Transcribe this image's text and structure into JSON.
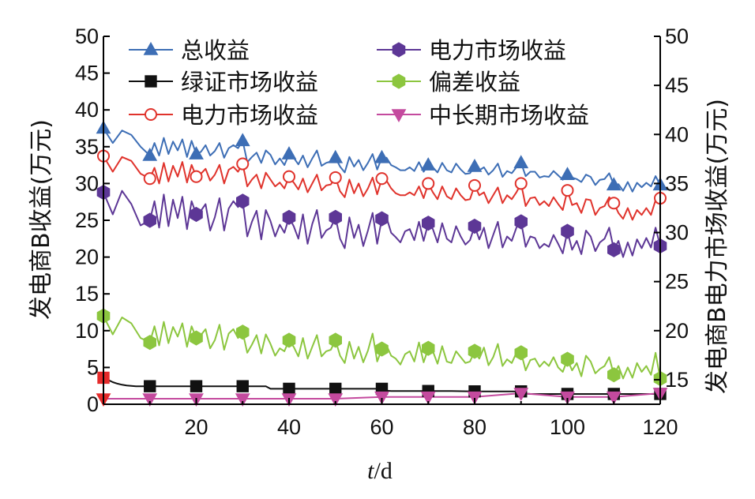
{
  "chart_data": {
    "type": "line",
    "xlabel_italic": "t",
    "xlabel_rest": "/d",
    "ylabel_left": "发电商B收益(万元)",
    "ylabel_right": "发电商B电力市场收益(万元)",
    "xlim": [
      0,
      120
    ],
    "ylim_left": [
      0,
      50
    ],
    "ylim_right": [
      12.5,
      50
    ],
    "x_ticks": [
      20,
      40,
      60,
      80,
      100,
      120
    ],
    "y_ticks_left": [
      0,
      5,
      10,
      15,
      20,
      25,
      30,
      35,
      40,
      45,
      50
    ],
    "y_ticks_right": [
      15,
      20,
      25,
      30,
      35,
      40,
      45,
      50
    ],
    "grid": false,
    "legend_position": "top",
    "marker_x": [
      0,
      10,
      20,
      30,
      40,
      50,
      60,
      70,
      80,
      90,
      100,
      110,
      120
    ],
    "series": [
      {
        "name": "总收益",
        "color": "#3d6eb5",
        "marker": "triangle-up",
        "marker_fill": "#3d6eb5",
        "axis": "left",
        "x": [
          0,
          2,
          4,
          6,
          8,
          10,
          11,
          12,
          13,
          14,
          15,
          16,
          17,
          18,
          19,
          20,
          21,
          22,
          23,
          24,
          25,
          26,
          27,
          28,
          29,
          30,
          31,
          32,
          33,
          34,
          35,
          36,
          37,
          38,
          39,
          40,
          41,
          42,
          43,
          44,
          45,
          46,
          47,
          48,
          49,
          50,
          51,
          52,
          53,
          54,
          55,
          56,
          57,
          58,
          59,
          60,
          61,
          62,
          63,
          64,
          65,
          66,
          67,
          68,
          69,
          70,
          71,
          72,
          73,
          74,
          75,
          76,
          77,
          78,
          79,
          80,
          81,
          82,
          83,
          84,
          85,
          86,
          87,
          88,
          89,
          90,
          91,
          92,
          93,
          94,
          95,
          96,
          97,
          98,
          99,
          100,
          101,
          102,
          103,
          104,
          105,
          106,
          107,
          108,
          109,
          110,
          111,
          112,
          113,
          114,
          115,
          116,
          117,
          118,
          119,
          120
        ],
        "values": [
          37.5,
          35.5,
          37.2,
          36.6,
          35.0,
          33.8,
          35.5,
          33.8,
          36.2,
          34.0,
          35.7,
          34.5,
          36.0,
          33.6,
          35.8,
          34.0,
          34.3,
          35.2,
          33.8,
          34.4,
          35.5,
          33.5,
          34.8,
          35.2,
          34.8,
          35.8,
          32.9,
          33.6,
          34.2,
          32.8,
          34.5,
          33.9,
          32.6,
          33.4,
          32.5,
          34.0,
          33.5,
          32.6,
          33.8,
          32.2,
          33.4,
          34.5,
          32.4,
          32.8,
          33.0,
          33.5,
          32.3,
          31.5,
          33.6,
          32.3,
          33.2,
          31.8,
          32.8,
          34.0,
          31.9,
          33.5,
          33.5,
          32.5,
          32.2,
          31.8,
          31.8,
          32.2,
          31.7,
          32.9,
          31.6,
          32.5,
          32.2,
          31.5,
          32.8,
          31.8,
          31.5,
          32.7,
          31.9,
          31.3,
          31.4,
          32.3,
          31.8,
          32.2,
          31.2,
          31.8,
          32.7,
          30.9,
          31.7,
          31.4,
          32.2,
          32.8,
          31.0,
          31.6,
          31.6,
          30.8,
          31.0,
          30.9,
          31.7,
          31.1,
          30.5,
          31.2,
          30.8,
          30.6,
          30.2,
          31.2,
          30.9,
          29.8,
          30.5,
          30.6,
          31.4,
          29.8,
          29.9,
          29.0,
          30.2,
          28.9,
          30.1,
          29.5,
          30.1,
          29.6,
          31.0,
          29.8
        ]
      },
      {
        "name": "绿证市场收益",
        "color": "#111111",
        "marker": "square",
        "marker_fill": "#111111",
        "first_marker_color": "#e52b2b",
        "axis": "left",
        "x": [
          0,
          1,
          2,
          3,
          4,
          5,
          6,
          7,
          8,
          10,
          15,
          20,
          25,
          30,
          35,
          36,
          40,
          45,
          50,
          55,
          60,
          61,
          62,
          65,
          70,
          75,
          80,
          85,
          90,
          91,
          92,
          95,
          100,
          105,
          110,
          115,
          120
        ],
        "values": [
          3.6,
          3.3,
          3.0,
          2.8,
          2.65,
          2.55,
          2.5,
          2.45,
          2.45,
          2.45,
          2.45,
          2.45,
          2.45,
          2.45,
          2.45,
          2.1,
          2.1,
          2.1,
          2.1,
          2.1,
          2.1,
          1.85,
          1.8,
          1.8,
          1.8,
          1.8,
          1.75,
          1.75,
          1.75,
          1.45,
          1.4,
          1.4,
          1.4,
          1.4,
          1.4,
          1.4,
          1.4
        ]
      },
      {
        "name": "电力市场收益",
        "color": "#e0332c",
        "marker": "circle-open",
        "marker_fill": "#ffffff",
        "axis": "right",
        "x": [
          0,
          2,
          4,
          6,
          8,
          10,
          11,
          12,
          13,
          14,
          15,
          16,
          17,
          18,
          19,
          20,
          21,
          22,
          23,
          24,
          25,
          26,
          27,
          28,
          29,
          30,
          31,
          32,
          33,
          34,
          35,
          36,
          37,
          38,
          39,
          40,
          41,
          42,
          43,
          44,
          45,
          46,
          47,
          48,
          49,
          50,
          51,
          52,
          53,
          54,
          55,
          56,
          57,
          58,
          59,
          60,
          61,
          62,
          63,
          64,
          65,
          66,
          67,
          68,
          69,
          70,
          71,
          72,
          73,
          74,
          75,
          76,
          77,
          78,
          79,
          80,
          81,
          82,
          83,
          84,
          85,
          86,
          87,
          88,
          89,
          90,
          91,
          92,
          93,
          94,
          95,
          96,
          97,
          98,
          99,
          100,
          101,
          102,
          103,
          104,
          105,
          106,
          107,
          108,
          109,
          110,
          111,
          112,
          113,
          114,
          115,
          116,
          117,
          118,
          119,
          120
        ],
        "values": [
          37.8,
          36.2,
          37.7,
          37.3,
          36.0,
          35.5,
          36.6,
          35.0,
          37.1,
          35.2,
          36.8,
          35.7,
          37.2,
          35.1,
          36.9,
          35.7,
          36.0,
          36.5,
          35.3,
          35.9,
          36.9,
          35.0,
          36.4,
          36.7,
          36.2,
          37.0,
          34.7,
          35.4,
          35.9,
          34.5,
          36.1,
          35.4,
          34.7,
          35.1,
          34.5,
          35.7,
          35.1,
          34.4,
          35.5,
          34.1,
          35.0,
          35.9,
          34.3,
          34.8,
          34.9,
          35.6,
          34.2,
          33.6,
          35.4,
          34.0,
          35.0,
          33.7,
          34.5,
          35.6,
          33.9,
          35.5,
          35.3,
          34.5,
          34.0,
          33.8,
          33.8,
          34.1,
          33.8,
          34.7,
          33.5,
          35.0,
          34.1,
          33.4,
          34.7,
          33.7,
          33.4,
          34.5,
          33.8,
          33.3,
          33.4,
          34.8,
          33.8,
          34.1,
          33.0,
          33.8,
          34.6,
          33.0,
          33.8,
          33.4,
          34.1,
          35.0,
          32.7,
          33.5,
          33.6,
          32.8,
          33.2,
          32.7,
          33.6,
          32.9,
          32.3,
          34.3,
          32.8,
          33.0,
          32.0,
          33.4,
          33.3,
          31.8,
          32.5,
          32.7,
          33.6,
          33.0,
          32.0,
          31.4,
          32.5,
          31.3,
          32.3,
          31.8,
          32.5,
          31.8,
          33.3,
          33.5
        ]
      },
      {
        "name": "电力市场收益",
        "color": "#5d3796",
        "marker": "hexagon",
        "marker_fill": "#5d3796",
        "axis": "left",
        "x": [
          0,
          2,
          4,
          6,
          8,
          10,
          11,
          12,
          13,
          14,
          15,
          16,
          17,
          18,
          19,
          20,
          21,
          22,
          23,
          24,
          25,
          26,
          27,
          28,
          29,
          30,
          31,
          32,
          33,
          34,
          35,
          36,
          37,
          38,
          39,
          40,
          41,
          42,
          43,
          44,
          45,
          46,
          47,
          48,
          49,
          50,
          51,
          52,
          53,
          54,
          55,
          56,
          57,
          58,
          59,
          60,
          61,
          62,
          63,
          64,
          65,
          66,
          67,
          68,
          69,
          70,
          71,
          72,
          73,
          74,
          75,
          76,
          77,
          78,
          79,
          80,
          81,
          82,
          83,
          84,
          85,
          86,
          87,
          88,
          89,
          90,
          91,
          92,
          93,
          94,
          95,
          96,
          97,
          98,
          99,
          100,
          101,
          102,
          103,
          104,
          105,
          106,
          107,
          108,
          109,
          110,
          111,
          112,
          113,
          114,
          115,
          116,
          117,
          118,
          119,
          120
        ],
        "values": [
          28.8,
          25.8,
          29.0,
          27.2,
          24.3,
          25.0,
          27.6,
          24.0,
          28.5,
          24.2,
          27.8,
          25.3,
          28.2,
          23.8,
          27.6,
          25.8,
          26.3,
          27.2,
          23.6,
          25.4,
          28.0,
          23.6,
          26.6,
          27.6,
          26.8,
          27.6,
          22.8,
          24.8,
          26.3,
          22.4,
          26.4,
          24.9,
          22.8,
          24.4,
          23.3,
          25.4,
          24.2,
          22.5,
          25.8,
          21.8,
          24.5,
          26.4,
          22.6,
          23.6,
          24.0,
          25.4,
          22.5,
          21.2,
          25.4,
          22.6,
          24.4,
          21.5,
          23.6,
          26.0,
          21.8,
          25.2,
          25.4,
          23.3,
          22.7,
          22.0,
          23.5,
          23.8,
          22.3,
          24.8,
          22.2,
          24.6,
          23.8,
          22.0,
          24.6,
          22.5,
          22.0,
          24.2,
          22.8,
          21.7,
          22.3,
          24.2,
          22.4,
          24.0,
          21.2,
          23.0,
          24.8,
          21.3,
          22.8,
          22.2,
          24.0,
          24.8,
          21.4,
          22.8,
          22.6,
          21.2,
          21.8,
          21.4,
          23.0,
          21.8,
          20.5,
          23.5,
          21.0,
          22.2,
          20.4,
          23.6,
          22.8,
          20.8,
          22.0,
          22.5,
          24.0,
          21.0,
          22.2,
          20.0,
          22.0,
          20.2,
          22.4,
          21.2,
          22.6,
          21.3,
          24.0,
          21.5
        ]
      },
      {
        "name": "偏差收益",
        "color": "#8cc63f",
        "marker": "hexagon",
        "marker_fill": "#8cc63f",
        "axis": "left",
        "x": [
          0,
          2,
          4,
          6,
          8,
          10,
          11,
          12,
          13,
          14,
          15,
          16,
          17,
          18,
          19,
          20,
          21,
          22,
          23,
          24,
          25,
          26,
          27,
          28,
          29,
          30,
          31,
          32,
          33,
          34,
          35,
          36,
          37,
          38,
          39,
          40,
          41,
          42,
          43,
          44,
          45,
          46,
          47,
          48,
          49,
          50,
          51,
          52,
          53,
          54,
          55,
          56,
          57,
          58,
          59,
          60,
          61,
          62,
          63,
          64,
          65,
          66,
          67,
          68,
          69,
          70,
          71,
          72,
          73,
          74,
          75,
          76,
          77,
          78,
          79,
          80,
          81,
          82,
          83,
          84,
          85,
          86,
          87,
          88,
          89,
          90,
          91,
          92,
          93,
          94,
          95,
          96,
          97,
          98,
          99,
          100,
          101,
          102,
          103,
          104,
          105,
          106,
          107,
          108,
          109,
          110,
          111,
          112,
          113,
          114,
          115,
          116,
          117,
          118,
          119,
          120
        ],
        "values": [
          12.0,
          9.5,
          11.8,
          11.0,
          9.0,
          8.4,
          10.6,
          8.0,
          11.2,
          8.3,
          10.5,
          9.2,
          11.0,
          7.8,
          10.6,
          9.0,
          9.4,
          10.2,
          7.6,
          8.7,
          10.8,
          7.4,
          9.6,
          10.2,
          9.0,
          9.8,
          7.0,
          8.1,
          9.4,
          6.9,
          9.5,
          8.2,
          6.6,
          7.6,
          7.2,
          8.7,
          7.8,
          6.5,
          9.0,
          6.2,
          7.8,
          9.4,
          6.5,
          7.2,
          7.4,
          8.7,
          6.6,
          5.6,
          8.5,
          6.2,
          7.8,
          5.7,
          7.3,
          9.6,
          5.8,
          7.5,
          8.0,
          6.6,
          6.2,
          5.4,
          6.8,
          7.2,
          5.8,
          8.4,
          5.7,
          7.6,
          7.2,
          5.5,
          7.9,
          5.8,
          5.6,
          7.2,
          6.4,
          5.6,
          5.8,
          7.2,
          6.2,
          7.7,
          5.3,
          6.4,
          8.2,
          5.2,
          6.1,
          5.6,
          7.0,
          7.0,
          4.6,
          6.0,
          6.2,
          5.1,
          5.8,
          5.2,
          6.4,
          5.0,
          4.4,
          6.1,
          4.6,
          5.6,
          3.8,
          6.6,
          5.8,
          4.2,
          4.8,
          5.2,
          6.4,
          4.0,
          5.2,
          3.5,
          5.0,
          3.6,
          5.6,
          4.4,
          5.2,
          4.0,
          7.0,
          3.5
        ]
      },
      {
        "name": "中长期市场收益",
        "color": "#c44a9e",
        "marker": "triangle-down",
        "marker_fill": "#c44a9e",
        "first_marker_color": "#e52b2b",
        "axis": "left",
        "x": [
          0,
          10,
          20,
          30,
          40,
          50,
          60,
          70,
          80,
          90,
          100,
          110,
          120
        ],
        "values": [
          0.75,
          0.75,
          0.75,
          0.75,
          0.75,
          0.75,
          1.0,
          1.0,
          1.0,
          1.5,
          1.0,
          1.0,
          1.5
        ]
      }
    ]
  }
}
